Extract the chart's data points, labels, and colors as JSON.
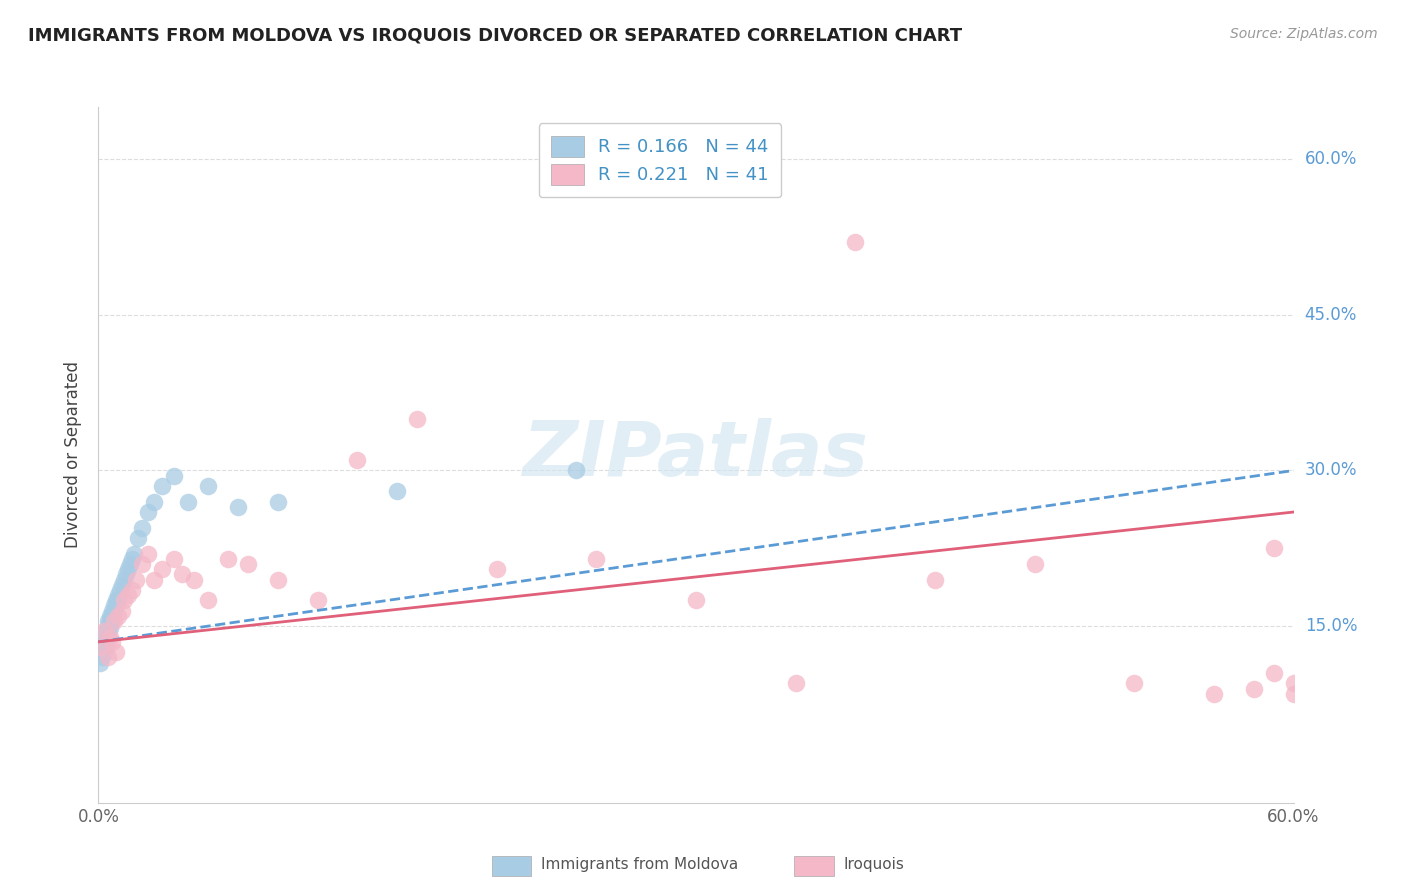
{
  "title": "IMMIGRANTS FROM MOLDOVA VS IROQUOIS DIVORCED OR SEPARATED CORRELATION CHART",
  "source_text": "Source: ZipAtlas.com",
  "ylabel": "Divorced or Separated",
  "legend_label_1": "Immigrants from Moldova",
  "legend_label_2": "Iroquois",
  "r1": 0.166,
  "n1": 44,
  "r2": 0.221,
  "n2": 41,
  "color_blue": "#a8cce4",
  "color_blue_line": "#5b9bd5",
  "color_pink": "#f4b8c8",
  "color_pink_line": "#e0607a",
  "watermark_color": "#d0e4f0",
  "xlim": [
    0.0,
    0.6
  ],
  "ylim": [
    -0.02,
    0.65
  ],
  "x_ticks": [
    0.0,
    0.6
  ],
  "x_tick_labels": [
    "0.0%",
    "60.0%"
  ],
  "y_ticks": [
    0.15,
    0.3,
    0.45,
    0.6
  ],
  "y_tick_labels": [
    "15.0%",
    "30.0%",
    "45.0%",
    "60.0%"
  ],
  "blue_x": [
    0.001,
    0.002,
    0.002,
    0.003,
    0.003,
    0.003,
    0.004,
    0.004,
    0.004,
    0.005,
    0.005,
    0.005,
    0.006,
    0.006,
    0.006,
    0.007,
    0.007,
    0.007,
    0.008,
    0.008,
    0.009,
    0.009,
    0.01,
    0.01,
    0.011,
    0.012,
    0.013,
    0.014,
    0.015,
    0.016,
    0.017,
    0.018,
    0.02,
    0.022,
    0.025,
    0.028,
    0.032,
    0.038,
    0.045,
    0.055,
    0.07,
    0.09,
    0.15,
    0.24
  ],
  "blue_y": [
    0.115,
    0.13,
    0.12,
    0.14,
    0.135,
    0.125,
    0.145,
    0.14,
    0.13,
    0.155,
    0.15,
    0.145,
    0.16,
    0.155,
    0.148,
    0.165,
    0.16,
    0.155,
    0.17,
    0.165,
    0.175,
    0.17,
    0.18,
    0.175,
    0.185,
    0.19,
    0.195,
    0.2,
    0.205,
    0.21,
    0.215,
    0.22,
    0.235,
    0.245,
    0.26,
    0.27,
    0.285,
    0.295,
    0.27,
    0.285,
    0.265,
    0.27,
    0.28,
    0.3
  ],
  "pink_x": [
    0.001,
    0.003,
    0.005,
    0.006,
    0.007,
    0.008,
    0.009,
    0.01,
    0.012,
    0.013,
    0.015,
    0.017,
    0.019,
    0.022,
    0.025,
    0.028,
    0.032,
    0.038,
    0.042,
    0.048,
    0.055,
    0.065,
    0.075,
    0.09,
    0.11,
    0.13,
    0.16,
    0.2,
    0.25,
    0.3,
    0.35,
    0.38,
    0.42,
    0.47,
    0.52,
    0.56,
    0.59,
    0.6,
    0.6,
    0.59,
    0.58
  ],
  "pink_y": [
    0.13,
    0.145,
    0.12,
    0.14,
    0.135,
    0.155,
    0.125,
    0.16,
    0.165,
    0.175,
    0.18,
    0.185,
    0.195,
    0.21,
    0.22,
    0.195,
    0.205,
    0.215,
    0.2,
    0.195,
    0.175,
    0.215,
    0.21,
    0.195,
    0.175,
    0.31,
    0.35,
    0.205,
    0.215,
    0.175,
    0.095,
    0.52,
    0.195,
    0.21,
    0.095,
    0.085,
    0.225,
    0.095,
    0.085,
    0.105,
    0.09
  ]
}
